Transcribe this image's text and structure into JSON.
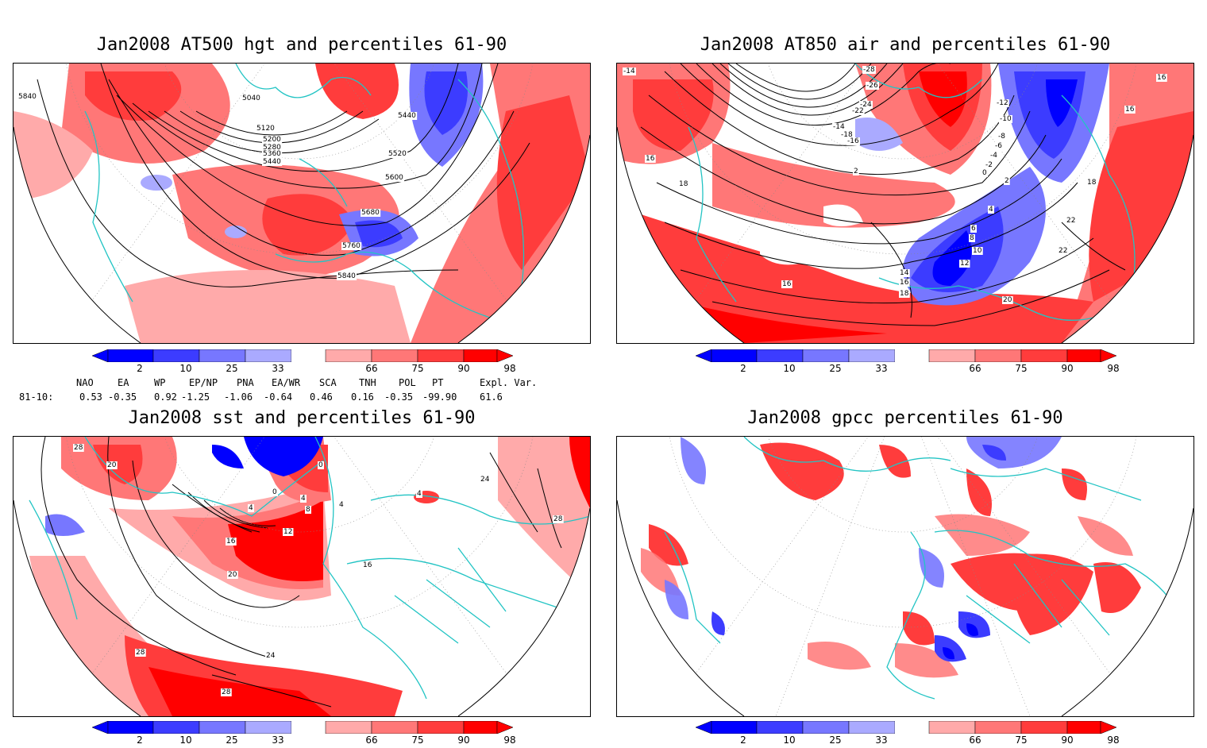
{
  "panels": [
    {
      "id": "hgt500",
      "title": "Jan2008 AT500 hgt and percentiles 61-90",
      "contour_labels": [
        "5840",
        "5040",
        "5120",
        "5200",
        "5280",
        "5360",
        "5440",
        "5440",
        "5520",
        "5600",
        "5680",
        "5760",
        "5840"
      ]
    },
    {
      "id": "air850",
      "title": "Jan2008 AT850 air and percentiles 61-90",
      "contour_labels": [
        "-14",
        "-28",
        "-26",
        "-24",
        "-22",
        "-14",
        "-18",
        "-16",
        "-12",
        "-10",
        "-8",
        "-6",
        "-4",
        "-2",
        "0",
        "2",
        "2",
        "4",
        "6",
        "8",
        "10",
        "12",
        "14",
        "16",
        "18",
        "16",
        "16",
        "16",
        "18",
        "18",
        "20",
        "22",
        "22",
        "16"
      ]
    },
    {
      "id": "sst",
      "title": "Jan2008 sst and percentiles 61-90",
      "contour_labels": [
        "28",
        "20",
        "0",
        "0",
        "4",
        "4",
        "8",
        "4",
        "12",
        "16",
        "20",
        "24",
        "28",
        "28",
        "24",
        "28",
        "16",
        "4"
      ]
    },
    {
      "id": "gpcc",
      "title": "Jan2008 gpcc percentiles 61-90",
      "contour_labels": []
    }
  ],
  "colorbar": {
    "labels": [
      "2",
      "10",
      "25",
      "33",
      "66",
      "75",
      "90",
      "98"
    ],
    "colors": [
      "#0000ff",
      "#3c3cff",
      "#7777ff",
      "#aaaaff",
      "#ffffff",
      "#ffaaaa",
      "#ff7777",
      "#ff3c3c",
      "#ff0000"
    ]
  },
  "indices": {
    "headers": [
      "NAO",
      "EA",
      "WP",
      "EP/NP",
      "PNA",
      "EA/WR",
      "SCA",
      "TNH",
      "POL",
      "PT",
      "Expl. Var."
    ],
    "row_label": "81-10:",
    "values": [
      "0.53",
      "-0.35",
      "0.92",
      "-1.25",
      "-1.06",
      "-0.64",
      "0.46",
      "0.16",
      "-0.35",
      "-99.90",
      "61.6"
    ]
  },
  "colors": {
    "coast": "#22c4c4",
    "contour": "#000000",
    "grid": "#888888"
  }
}
